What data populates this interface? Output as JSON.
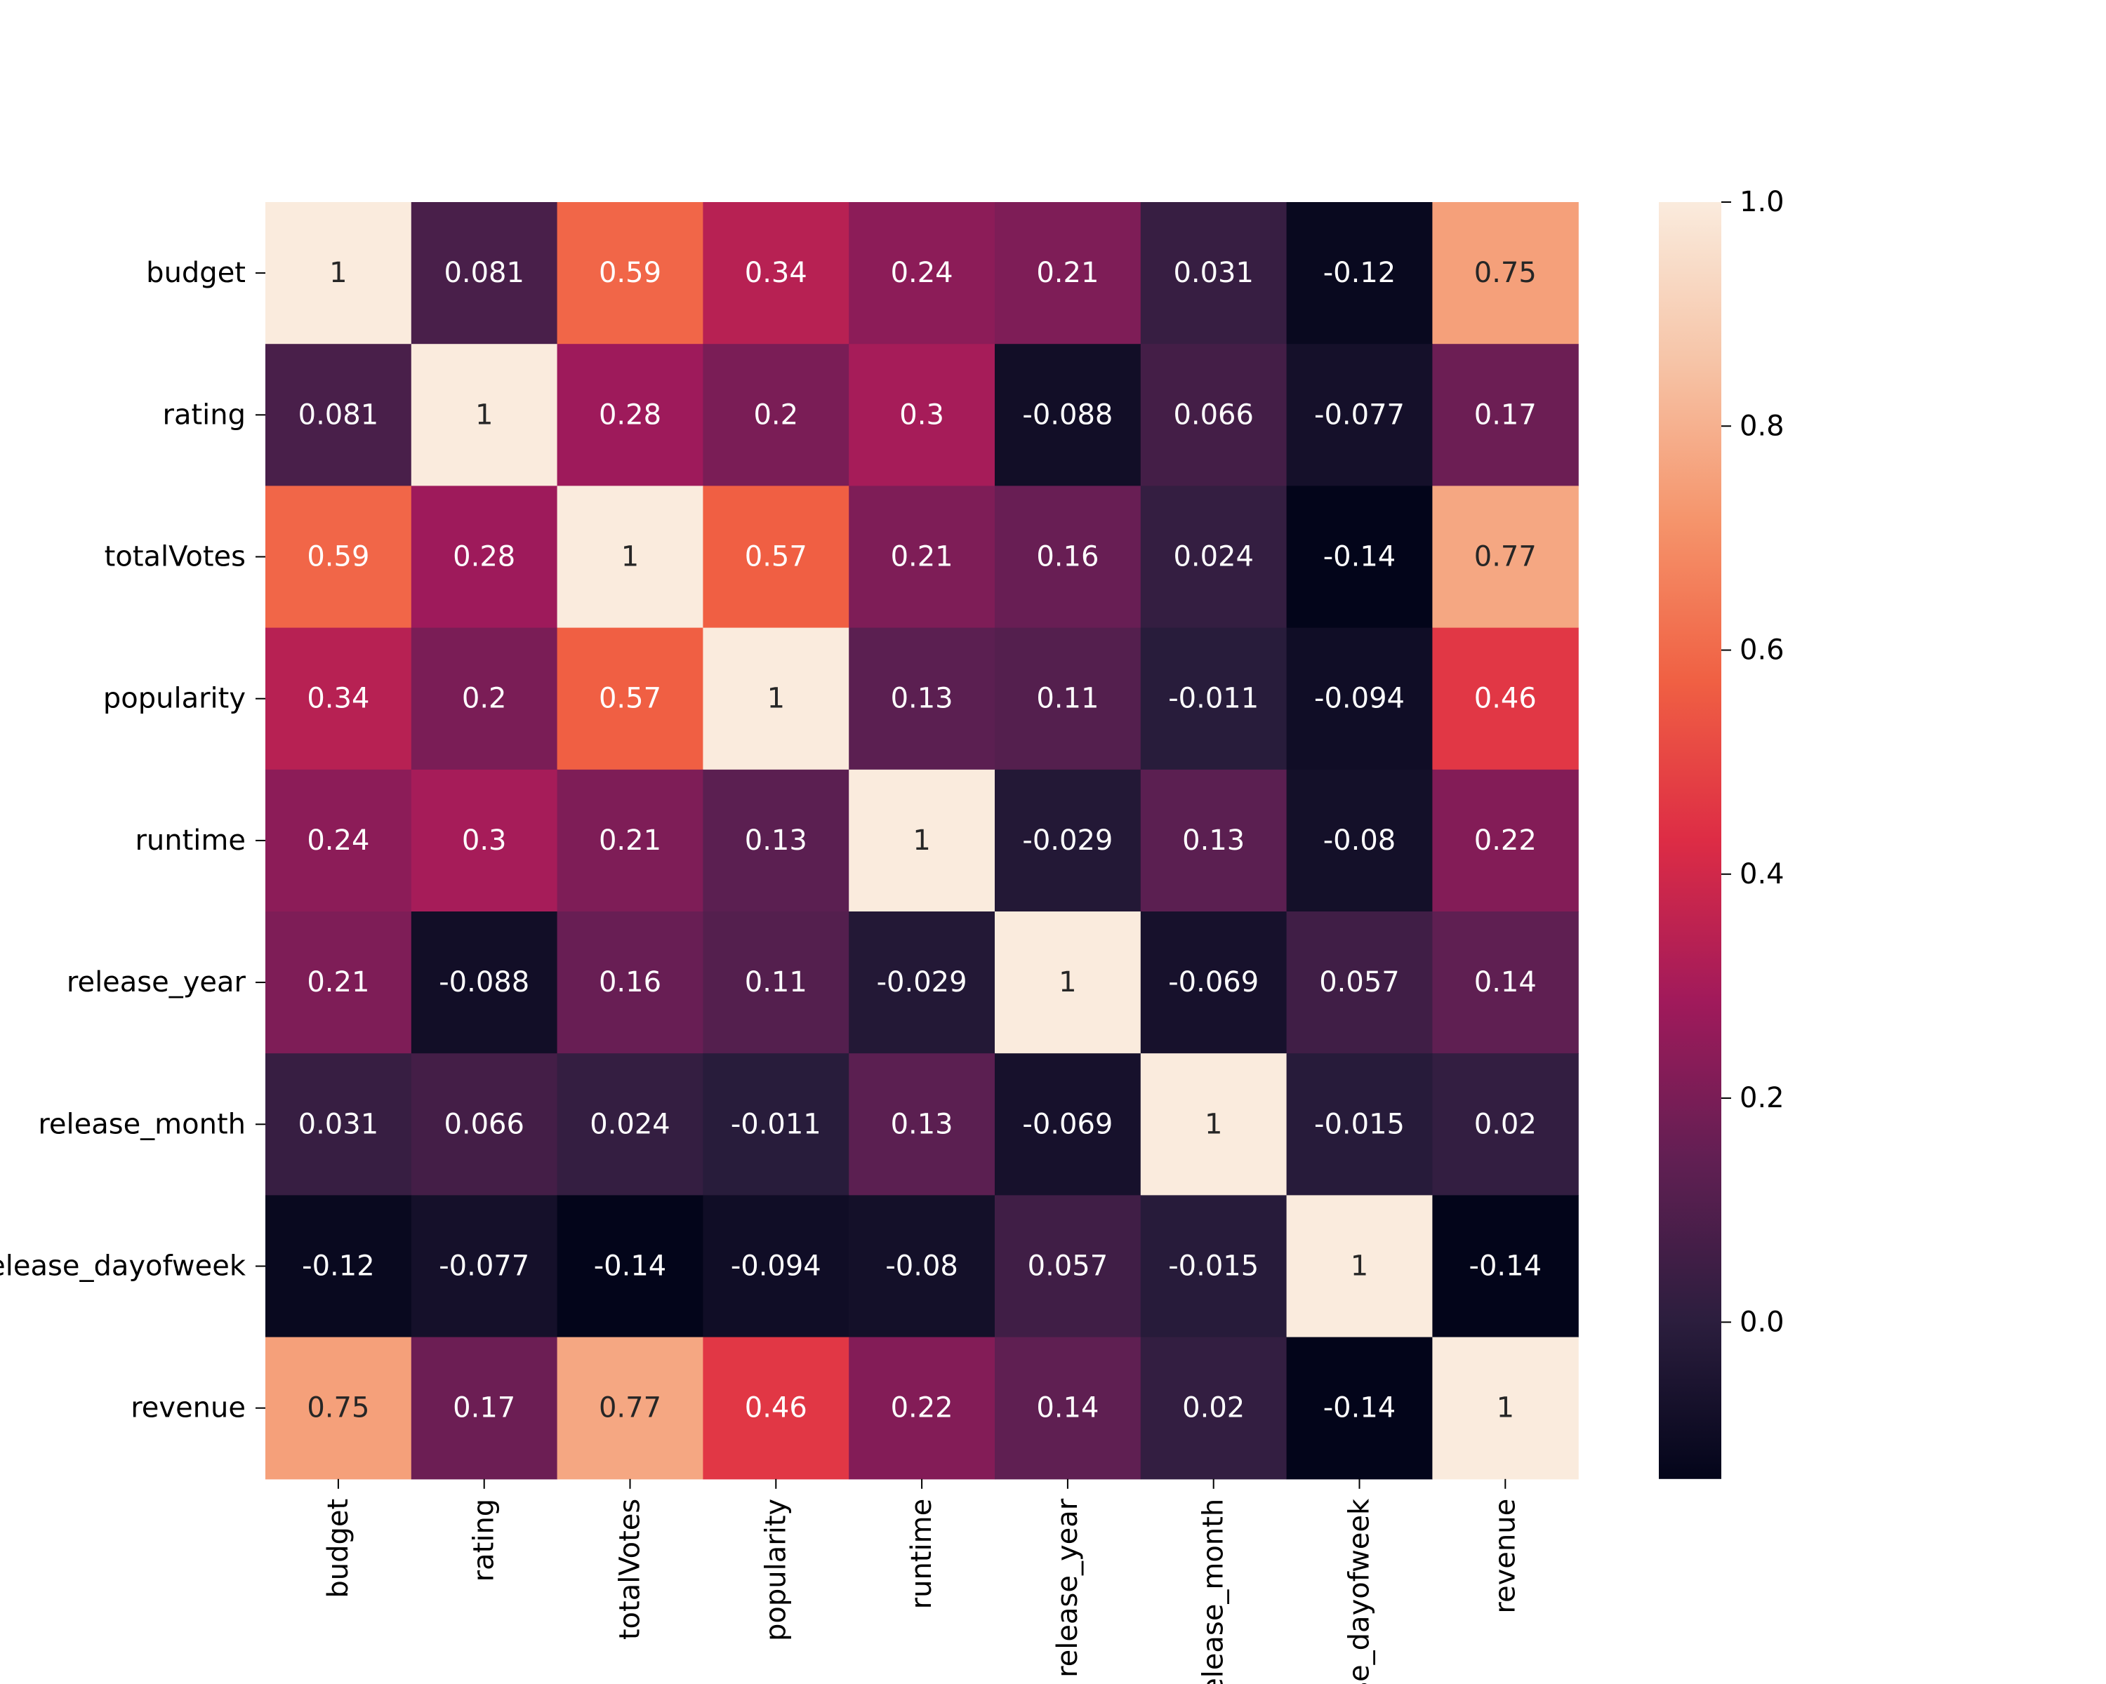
{
  "chart_data": {
    "type": "heatmap",
    "title": "",
    "xlabel": "",
    "ylabel": "",
    "row_labels": [
      "budget",
      "rating",
      "totalVotes",
      "popularity",
      "runtime",
      "release_year",
      "release_month",
      "release_dayofweek",
      "revenue"
    ],
    "col_labels": [
      "budget",
      "rating",
      "totalVotes",
      "popularity",
      "runtime",
      "release_year",
      "release_month",
      "release_dayofweek",
      "revenue"
    ],
    "values": [
      [
        1,
        0.081,
        0.59,
        0.34,
        0.24,
        0.21,
        0.031,
        -0.12,
        0.75
      ],
      [
        0.081,
        1,
        0.28,
        0.2,
        0.3,
        -0.088,
        0.066,
        -0.077,
        0.17
      ],
      [
        0.59,
        0.28,
        1,
        0.57,
        0.21,
        0.16,
        0.024,
        -0.14,
        0.77
      ],
      [
        0.34,
        0.2,
        0.57,
        1,
        0.13,
        0.11,
        -0.011,
        -0.094,
        0.46
      ],
      [
        0.24,
        0.3,
        0.21,
        0.13,
        1,
        -0.029,
        0.13,
        -0.08,
        0.22
      ],
      [
        0.21,
        -0.088,
        0.16,
        0.11,
        -0.029,
        1,
        -0.069,
        0.057,
        0.14
      ],
      [
        0.031,
        0.066,
        0.024,
        -0.011,
        0.13,
        -0.069,
        1,
        -0.015,
        0.02
      ],
      [
        -0.12,
        -0.077,
        -0.14,
        -0.094,
        -0.08,
        0.057,
        -0.015,
        1,
        -0.14
      ],
      [
        0.75,
        0.17,
        0.77,
        0.46,
        0.22,
        0.14,
        0.02,
        -0.14,
        1
      ]
    ],
    "annotations": [
      [
        "1",
        "0.081",
        "0.59",
        "0.34",
        "0.24",
        "0.21",
        "0.031",
        "-0.12",
        "0.75"
      ],
      [
        "0.081",
        "1",
        "0.28",
        "0.2",
        "0.3",
        "-0.088",
        "0.066",
        "-0.077",
        "0.17"
      ],
      [
        "0.59",
        "0.28",
        "1",
        "0.57",
        "0.21",
        "0.16",
        "0.024",
        "-0.14",
        "0.77"
      ],
      [
        "0.34",
        "0.2",
        "0.57",
        "1",
        "0.13",
        "0.11",
        "-0.011",
        "-0.094",
        "0.46"
      ],
      [
        "0.24",
        "0.3",
        "0.21",
        "0.13",
        "1",
        "-0.029",
        "0.13",
        "-0.08",
        "0.22"
      ],
      [
        "0.21",
        "-0.088",
        "0.16",
        "0.11",
        "-0.029",
        "1",
        "-0.069",
        "0.057",
        "0.14"
      ],
      [
        "0.031",
        "0.066",
        "0.024",
        "-0.011",
        "0.13",
        "-0.069",
        "1",
        "-0.015",
        "0.02"
      ],
      [
        "-0.12",
        "-0.077",
        "-0.14",
        "-0.094",
        "-0.08",
        "0.057",
        "-0.015",
        "1",
        "-0.14"
      ],
      [
        "0.75",
        "0.17",
        "0.77",
        "0.46",
        "0.22",
        "0.14",
        "0.02",
        "-0.14",
        "1"
      ]
    ],
    "colorbar": {
      "min": -0.14,
      "max": 1.0,
      "ticks": [
        0.0,
        0.2,
        0.4,
        0.6,
        0.8,
        1.0
      ],
      "tick_labels": [
        "0.0",
        "0.2",
        "0.4",
        "0.6",
        "0.8",
        "1.0"
      ],
      "colormap": "rocket",
      "stops": [
        "#03051a",
        "#2c1e3e",
        "#611f53",
        "#a11a5b",
        "#dd2c45",
        "#f06043",
        "#f5946b",
        "#f6c4a7",
        "#faebdd"
      ]
    }
  }
}
